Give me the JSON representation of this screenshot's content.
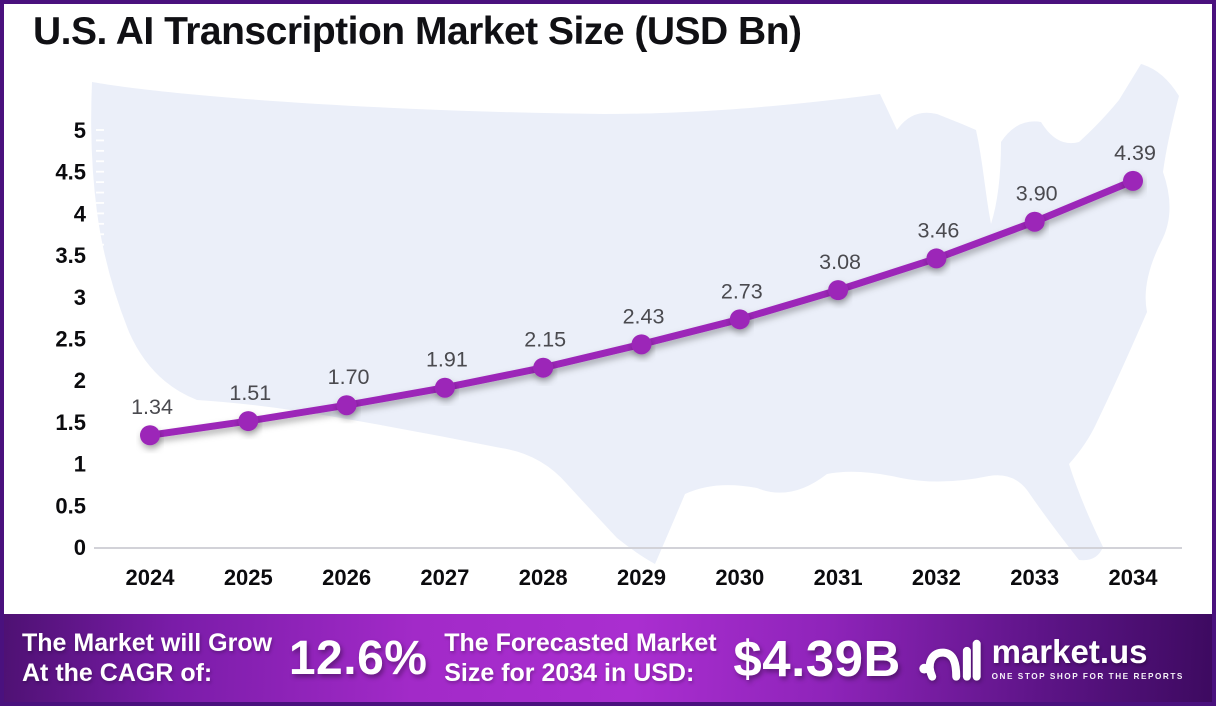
{
  "header": {
    "title": "U.S. AI Transcription Market Size (USD Bn)"
  },
  "chart_data": {
    "type": "line",
    "title": "U.S. AI Transcription Market Size (USD Bn)",
    "x": [
      "2024",
      "2025",
      "2026",
      "2027",
      "2028",
      "2029",
      "2030",
      "2031",
      "2032",
      "2033",
      "2034"
    ],
    "values": [
      1.34,
      1.51,
      1.7,
      1.91,
      2.15,
      2.43,
      2.73,
      3.08,
      3.46,
      3.9,
      4.39
    ],
    "point_labels": [
      "1.34",
      "1.51",
      "1.70",
      "1.91",
      "2.15",
      "2.43",
      "2.73",
      "3.08",
      "3.46",
      "3.90",
      "4.39"
    ],
    "xlabel": "",
    "ylabel": "",
    "ylim": [
      0,
      5
    ],
    "y_ticks": [
      "5",
      "4.5",
      "4",
      "3.5",
      "3",
      "2.5",
      "2",
      "1.5",
      "1",
      "0.5",
      "0"
    ],
    "grid": false,
    "legend": false,
    "background_motif": "us-map-silhouette"
  },
  "footer": {
    "cagr_label_line1": "The Market will Grow",
    "cagr_label_line2": "At the CAGR of:",
    "cagr_value": "12.6%",
    "forecast_label_line1": "The Forecasted Market",
    "forecast_label_line2": "Size for 2034 in USD:",
    "forecast_value": "$4.39B",
    "brand": {
      "name": "market.us",
      "tagline": "ONE STOP SHOP FOR THE REPORTS"
    }
  },
  "theme": {
    "accent": "#9C28B8",
    "frame_border": "#4A117E",
    "map_fill": "#EBEFF9",
    "axis_line": "#D2D2D8",
    "value_label_color": "#4A4A4F",
    "tick_label_color": "#0B0B0E"
  }
}
